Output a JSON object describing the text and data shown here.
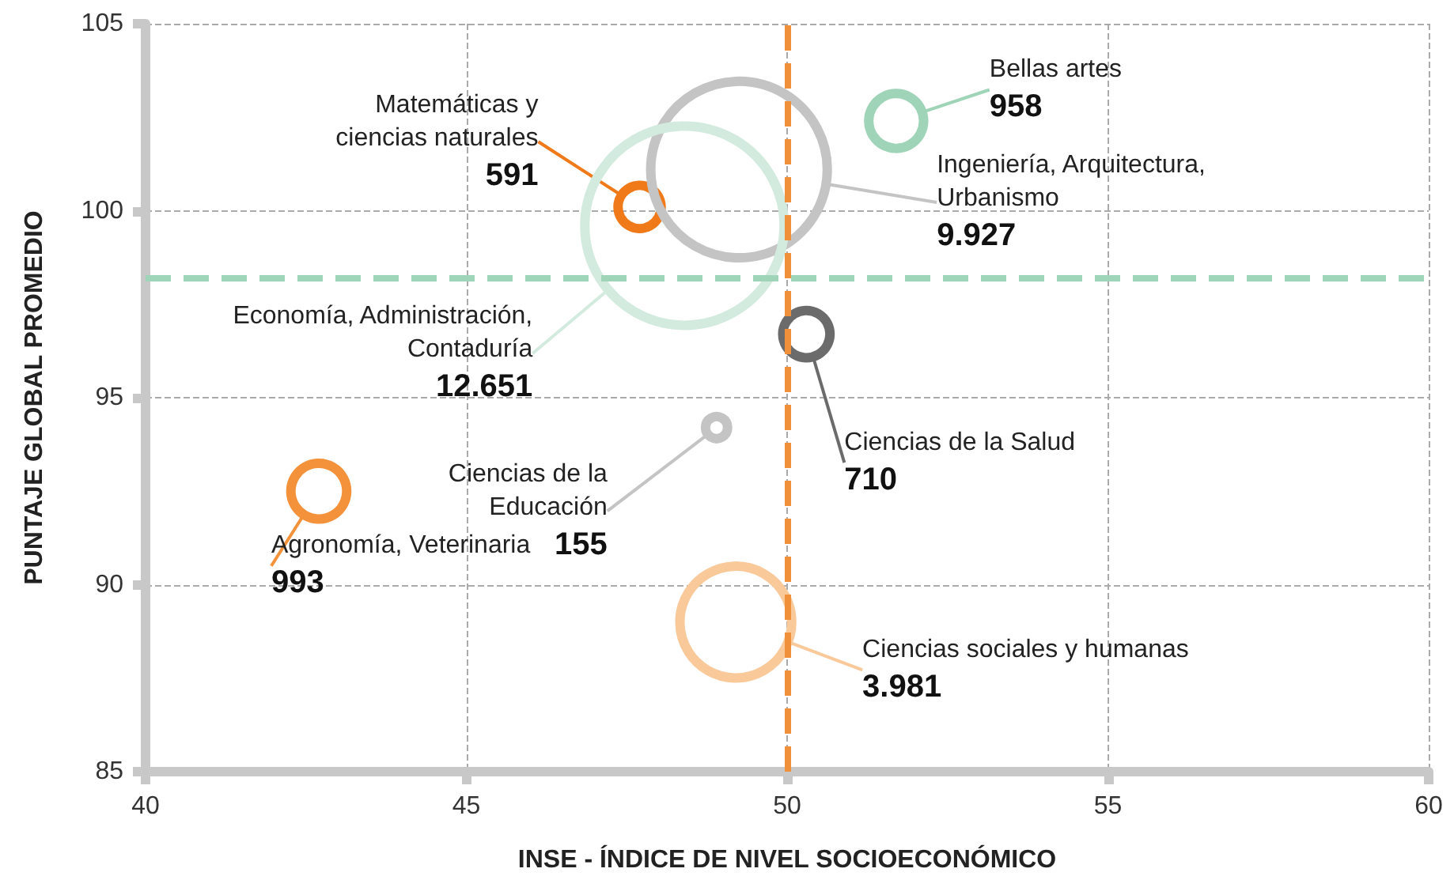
{
  "chart_data": {
    "type": "bubble",
    "xlabel": "INSE - ÍNDICE DE NIVEL SOCIOECONÓMICO",
    "ylabel": "PUNTAJE GLOBAL PROMEDIO",
    "xlim": [
      40,
      60
    ],
    "xticks": [
      40,
      45,
      50,
      55,
      60
    ],
    "ylim": [
      85,
      105
    ],
    "yticks": [
      85,
      90,
      95,
      100,
      105
    ],
    "grid": true,
    "legend": false,
    "series": [
      {
        "name": "Matemáticas y\nciencias naturales",
        "color": "#f07a1a",
        "x": [
          47.7
        ],
        "values": [
          100.1
        ],
        "sizes": [
          591
        ],
        "value_labels": [
          "591"
        ]
      },
      {
        "name": "Ingeniería, Arquitectura,\nUrbanismo",
        "color": "#c4c4c4",
        "x": [
          49.25
        ],
        "values": [
          101.1
        ],
        "sizes": [
          9927
        ],
        "value_labels": [
          "9.927"
        ]
      },
      {
        "name": "Economía, Administración,\nContaduría",
        "color": "#d3ebdf",
        "x": [
          48.4
        ],
        "values": [
          99.6
        ],
        "sizes": [
          12651
        ],
        "value_labels": [
          "12.651"
        ]
      },
      {
        "name": "Bellas artes",
        "color": "#9fd4b9",
        "x": [
          51.7
        ],
        "values": [
          102.4
        ],
        "sizes": [
          958
        ],
        "value_labels": [
          "958"
        ]
      },
      {
        "name": "Ciencias de la Salud",
        "color": "#6b6b6b",
        "x": [
          50.3
        ],
        "values": [
          96.7
        ],
        "sizes": [
          710
        ],
        "value_labels": [
          "710"
        ]
      },
      {
        "name": "Ciencias de la\nEducación",
        "color": "#c4c4c4",
        "x": [
          48.9
        ],
        "values": [
          94.2
        ],
        "sizes": [
          155
        ],
        "value_labels": [
          "155"
        ]
      },
      {
        "name": "Agronomía, Veterinaria",
        "color": "#f3923a",
        "x": [
          42.7
        ],
        "values": [
          92.5
        ],
        "sizes": [
          993
        ],
        "value_labels": [
          "993"
        ]
      },
      {
        "name": "Ciencias sociales y humanas",
        "color": "#f9c99a",
        "x": [
          49.2
        ],
        "values": [
          89.0
        ],
        "sizes": [
          3981
        ],
        "value_labels": [
          "3.981"
        ]
      }
    ],
    "ref_lines": [
      {
        "axis": "x",
        "value": 50,
        "color": "#f0903a",
        "line_style": "dashed"
      },
      {
        "axis": "y",
        "value": 98.2,
        "color": "#9fd4b9",
        "line_style": "dashed"
      }
    ]
  }
}
